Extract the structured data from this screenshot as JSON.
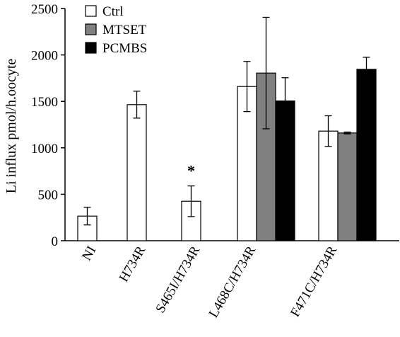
{
  "chart_data": {
    "type": "bar",
    "title": "",
    "xlabel": "",
    "ylabel": "Li influx pmol/h.oocyte",
    "ylim": [
      0,
      2500
    ],
    "yticks": [
      0,
      500,
      1000,
      1500,
      2000,
      2500
    ],
    "grid": false,
    "legend_position": "top-left",
    "categories": [
      "NI",
      "H734R",
      "S465I/H734R",
      "L468C/H734R",
      "F471C/H734R"
    ],
    "series": [
      {
        "name": "Ctrl",
        "color": "#ffffff",
        "values": [
          265,
          1465,
          425,
          1660,
          1180
        ],
        "errors": [
          95,
          145,
          165,
          270,
          165
        ]
      },
      {
        "name": "MTSET",
        "color": "#808080",
        "values": [
          null,
          null,
          null,
          1805,
          1160
        ],
        "errors": [
          null,
          null,
          null,
          600,
          10
        ]
      },
      {
        "name": "PCMBS",
        "color": "#000000",
        "values": [
          null,
          null,
          null,
          1505,
          1845
        ],
        "errors": [
          null,
          null,
          null,
          250,
          130
        ]
      }
    ],
    "annotations": [
      {
        "category": "S465I/H734R",
        "text": "*"
      }
    ]
  }
}
